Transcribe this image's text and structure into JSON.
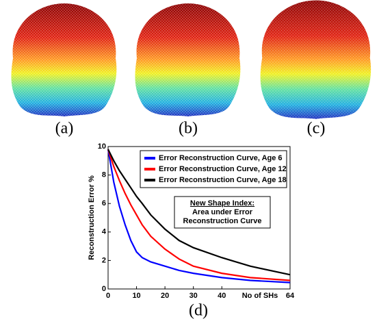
{
  "panel_labels": [
    "(a)",
    "(b)",
    "(c)"
  ],
  "chart_data": {
    "type": "line",
    "caption": "(d)",
    "y_label": "Reconstruction Error %",
    "x_label": "No of SHs",
    "x": [
      0,
      2,
      4,
      6,
      8,
      10,
      12,
      15,
      20,
      25,
      30,
      40,
      50,
      64
    ],
    "series": [
      {
        "name": "Error Reconstruction Curve, Age 6",
        "color": "#0000ff",
        "values": [
          9.8,
          7.5,
          5.8,
          4.5,
          3.4,
          2.6,
          2.2,
          1.9,
          1.6,
          1.3,
          1.1,
          0.8,
          0.6,
          0.45
        ]
      },
      {
        "name": "Error Reconstruction Curve, Age 12",
        "color": "#ff0000",
        "values": [
          9.8,
          8.6,
          7.6,
          6.7,
          5.9,
          5.2,
          4.5,
          3.7,
          2.8,
          2.1,
          1.6,
          1.1,
          0.8,
          0.6
        ]
      },
      {
        "name": "Error Reconstruction Curve, Age 18",
        "color": "#000000",
        "values": [
          9.8,
          9.0,
          8.3,
          7.7,
          7.1,
          6.5,
          6.0,
          5.2,
          4.2,
          3.4,
          2.9,
          2.2,
          1.6,
          1.0
        ]
      }
    ],
    "annotation": [
      "New Shape Index:",
      "Area under Error",
      "Reconstruction Curve"
    ],
    "xlim": [
      0,
      64
    ],
    "xticks": [
      0,
      10,
      20,
      30,
      40,
      64
    ],
    "ylim": [
      0,
      10
    ],
    "yticks": [
      0,
      2,
      4,
      6,
      8,
      10
    ],
    "legend": "upper right",
    "grid": false
  }
}
